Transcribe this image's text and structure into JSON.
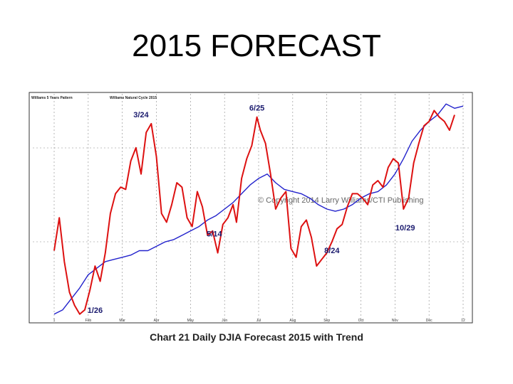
{
  "slide": {
    "title": "2015 FORECAST",
    "caption": "Chart 21 Daily DJIA Forecast 2015 with Trend"
  },
  "chart_data": {
    "type": "line",
    "title": "",
    "xlabel": "",
    "ylabel": "",
    "xlim": [
      0,
      12
    ],
    "ylim": [
      0,
      100
    ],
    "grid": true,
    "legend_position": "top-left",
    "x_ticks": [
      "1",
      "Feb",
      "Mar",
      "Apr",
      "May",
      "Jun",
      "Jul",
      "Aug",
      "Sep",
      "Oct",
      "Nov",
      "Dec",
      "12"
    ],
    "watermark": "© Copyright 2014 Larry Williams/CTI Publishing",
    "series": [
      {
        "name": "Williams 5 Years Pattern",
        "color": "#2222cc",
        "x": [
          0.0,
          0.25,
          0.5,
          0.75,
          1.0,
          1.25,
          1.5,
          1.75,
          2.0,
          2.25,
          2.5,
          2.75,
          3.0,
          3.25,
          3.5,
          3.75,
          4.0,
          4.25,
          4.5,
          4.75,
          5.0,
          5.25,
          5.5,
          5.75,
          6.0,
          6.25,
          6.5,
          6.75,
          7.0,
          7.25,
          7.5,
          7.75,
          8.0,
          8.25,
          8.5,
          8.75,
          9.0,
          9.25,
          9.5,
          9.75,
          10.0,
          10.25,
          10.5,
          10.75,
          11.0,
          11.25,
          11.5,
          11.75,
          12.0
        ],
        "values": [
          2,
          4,
          9,
          14,
          20,
          23,
          26,
          27,
          28,
          29,
          31,
          31,
          33,
          35,
          36,
          38,
          40,
          42,
          45,
          47,
          50,
          53,
          57,
          61,
          64,
          66,
          62,
          59,
          58,
          57,
          55,
          52,
          50,
          49,
          50,
          52,
          55,
          57,
          58,
          61,
          66,
          73,
          81,
          86,
          90,
          93,
          98,
          96,
          97
        ]
      },
      {
        "name": "Williams Natural Cycle 2015",
        "color": "#dd1111",
        "x": [
          0.0,
          0.15,
          0.3,
          0.45,
          0.6,
          0.75,
          0.9,
          1.05,
          1.2,
          1.35,
          1.5,
          1.65,
          1.8,
          1.95,
          2.1,
          2.25,
          2.4,
          2.55,
          2.7,
          2.85,
          3.0,
          3.15,
          3.3,
          3.45,
          3.6,
          3.75,
          3.9,
          4.05,
          4.2,
          4.35,
          4.5,
          4.65,
          4.8,
          4.95,
          5.1,
          5.25,
          5.35,
          5.5,
          5.65,
          5.8,
          5.95,
          6.05,
          6.2,
          6.35,
          6.5,
          6.65,
          6.8,
          6.95,
          7.1,
          7.25,
          7.4,
          7.55,
          7.7,
          7.85,
          8.0,
          8.15,
          8.3,
          8.45,
          8.6,
          8.75,
          8.9,
          9.05,
          9.2,
          9.35,
          9.5,
          9.65,
          9.8,
          9.95,
          10.1,
          10.25,
          10.4,
          10.55,
          10.7,
          10.85,
          11.0,
          11.15,
          11.3,
          11.45,
          11.6,
          11.75
        ],
        "values": [
          31,
          46,
          26,
          12,
          6,
          2,
          4,
          13,
          24,
          17,
          30,
          48,
          57,
          60,
          59,
          72,
          78,
          66,
          85,
          89,
          74,
          48,
          44,
          52,
          62,
          60,
          46,
          42,
          58,
          51,
          38,
          40,
          30,
          43,
          46,
          52,
          44,
          64,
          73,
          79,
          92,
          86,
          80,
          66,
          50,
          55,
          58,
          32,
          28,
          42,
          45,
          37,
          24,
          27,
          30,
          35,
          41,
          43,
          51,
          57,
          57,
          55,
          52,
          61,
          63,
          60,
          69,
          73,
          71,
          50,
          55,
          71,
          80,
          88,
          90,
          95,
          92,
          90,
          86,
          93
        ]
      }
    ],
    "annotations": [
      "3/24",
      "6/25",
      "1/26",
      "5/14",
      "8/24",
      "10/29"
    ]
  }
}
